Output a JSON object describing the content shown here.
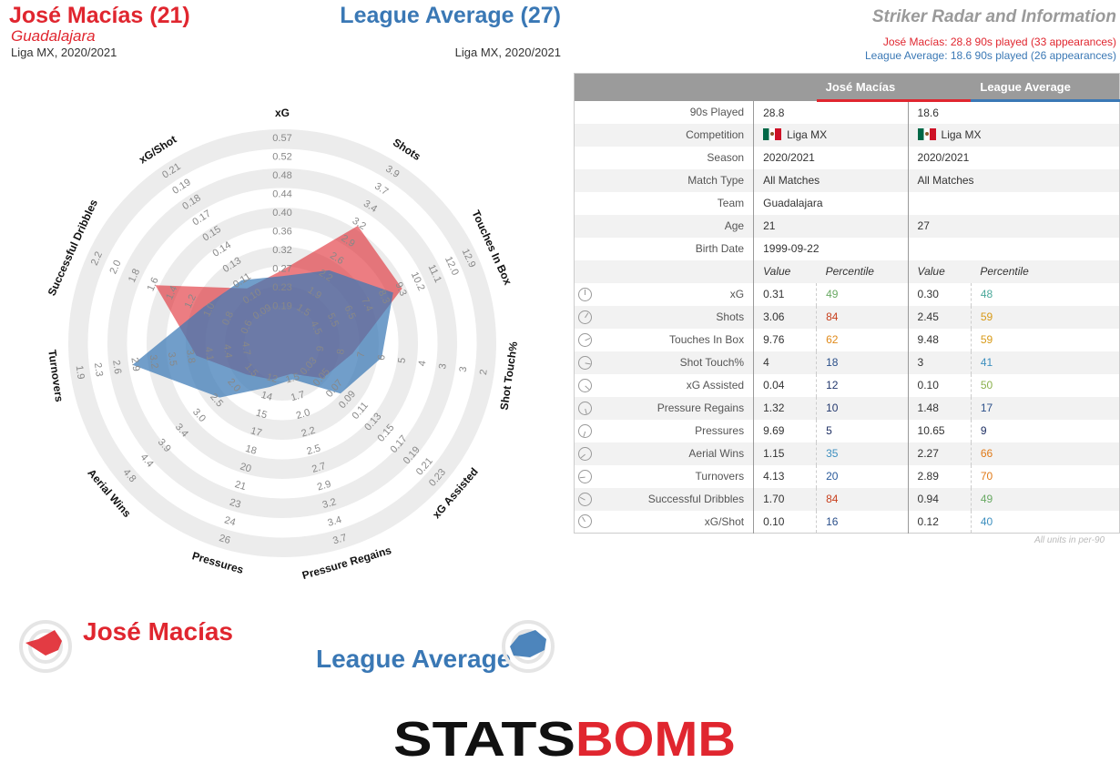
{
  "header": {
    "player1_name": "José Macías (21)",
    "player1_team": "Guadalajara",
    "player1_comp": "Liga MX, 2020/2021",
    "player2_name": "League Average (27)",
    "player2_comp": "Liga MX, 2020/2021",
    "radar_title": "Striker Radar and Information",
    "player1_played": "José Macías: 28.8 90s played (33 appearances)",
    "player2_played": "League Average: 18.6 90s played (26 appearances)"
  },
  "colors": {
    "player1": "#e0262f",
    "player2": "#3a78b5"
  },
  "chart_data": {
    "type": "radar",
    "axes": [
      {
        "label": "xG",
        "ticks": [
          "0.19",
          "0.23",
          "0.27",
          "0.32",
          "0.36",
          "0.40",
          "0.44",
          "0.48",
          "0.52",
          "0.57"
        ]
      },
      {
        "label": "Shots",
        "ticks": [
          "1.5",
          "1.9",
          "2.2",
          "2.6",
          "2.9",
          "3.2",
          "3.4",
          "3.7",
          "3.9"
        ]
      },
      {
        "label": "Touches In Box",
        "ticks": [
          "4.5",
          "5.5",
          "6.5",
          "7.4",
          "8.3",
          "9.3",
          "10.2",
          "11.1",
          "12.0",
          "12.9"
        ]
      },
      {
        "label": "Shot Touch%",
        "ticks": [
          "9",
          "8",
          "7",
          "6",
          "5",
          "4",
          "3",
          "3",
          "2"
        ]
      },
      {
        "label": "xG Assisted",
        "ticks": [
          "0.03",
          "0.05",
          "0.07",
          "0.09",
          "0.11",
          "0.13",
          "0.15",
          "0.17",
          "0.19",
          "0.21",
          "0.23"
        ]
      },
      {
        "label": "Pressure Regains",
        "ticks": [
          "1.5",
          "1.7",
          "2.0",
          "2.2",
          "2.5",
          "2.7",
          "2.9",
          "3.2",
          "3.4",
          "3.7"
        ]
      },
      {
        "label": "Pressures",
        "ticks": [
          "12",
          "14",
          "15",
          "17",
          "18",
          "20",
          "21",
          "23",
          "24",
          "26"
        ]
      },
      {
        "label": "Aerial Wins",
        "ticks": [
          "1.5",
          "2.0",
          "2.5",
          "3.0",
          "3.4",
          "3.9",
          "4.4",
          "4.8"
        ]
      },
      {
        "label": "Turnovers",
        "ticks": [
          "4.7",
          "4.4",
          "4.1",
          "3.8",
          "3.5",
          "3.2",
          "2.9",
          "2.6",
          "2.3",
          "1.9"
        ]
      },
      {
        "label": "Successful Dribbles",
        "ticks": [
          "0.6",
          "0.8",
          "1.0",
          "1.2",
          "1.4",
          "1.6",
          "1.8",
          "2.0",
          "2.2"
        ]
      },
      {
        "label": "xG/Shot",
        "ticks": [
          "0.09",
          "0.10",
          "0.11",
          "0.13",
          "0.14",
          "0.15",
          "0.17",
          "0.18",
          "0.19",
          "0.21"
        ]
      }
    ],
    "series": [
      {
        "name": "José Macías",
        "color": "#e0262f",
        "radius_fraction": [
          0.28,
          0.62,
          0.58,
          0.27,
          0.18,
          0.07,
          0.1,
          0.15,
          0.35,
          0.62,
          0.24
        ]
      },
      {
        "name": "League Average",
        "color": "#3a78b5",
        "radius_fraction": [
          0.25,
          0.35,
          0.53,
          0.42,
          0.3,
          0.1,
          0.14,
          0.33,
          0.68,
          0.35,
          0.29
        ]
      }
    ]
  },
  "table": {
    "col_player1": "José Macías",
    "col_player2": "League Average",
    "info_rows": [
      {
        "label": "90s Played",
        "p1": "28.8",
        "p2": "18.6"
      },
      {
        "label": "Competition",
        "p1": "Liga MX",
        "p2": "Liga MX",
        "flag": true
      },
      {
        "label": "Season",
        "p1": "2020/2021",
        "p2": "2020/2021"
      },
      {
        "label": "Match Type",
        "p1": "All Matches",
        "p2": "All Matches"
      },
      {
        "label": "Team",
        "p1": "Guadalajara",
        "p2": ""
      },
      {
        "label": "Age",
        "p1": "21",
        "p2": "27"
      },
      {
        "label": "Birth Date",
        "p1": "1999-09-22",
        "p2": ""
      }
    ],
    "sub_value": "Value",
    "sub_percentile": "Percentile",
    "stat_rows": [
      {
        "label": "xG",
        "v1": "0.31",
        "p1": "49",
        "c1": "#6aaa64",
        "v2": "0.30",
        "p2": "48",
        "c2": "#4aa89a"
      },
      {
        "label": "Shots",
        "v1": "3.06",
        "p1": "84",
        "c1": "#c8401e",
        "v2": "2.45",
        "p2": "59",
        "c2": "#d89a18"
      },
      {
        "label": "Touches In Box",
        "v1": "9.76",
        "p1": "62",
        "c1": "#e08a1a",
        "v2": "9.48",
        "p2": "59",
        "c2": "#d89a18"
      },
      {
        "label": "Shot Touch%",
        "v1": "4",
        "p1": "18",
        "c1": "#2a4f8a",
        "v2": "3",
        "p2": "41",
        "c2": "#3d8fbf"
      },
      {
        "label": "xG Assisted",
        "v1": "0.04",
        "p1": "12",
        "c1": "#23386e",
        "v2": "0.10",
        "p2": "50",
        "c2": "#8ab04a"
      },
      {
        "label": "Pressure Regains",
        "v1": "1.32",
        "p1": "10",
        "c1": "#23386e",
        "v2": "1.48",
        "p2": "17",
        "c2": "#2a4f8a"
      },
      {
        "label": "Pressures",
        "v1": "9.69",
        "p1": "5",
        "c1": "#1e2f63",
        "v2": "10.65",
        "p2": "9",
        "c2": "#1e2f63"
      },
      {
        "label": "Aerial Wins",
        "v1": "1.15",
        "p1": "35",
        "c1": "#3d8fbf",
        "v2": "2.27",
        "p2": "66",
        "c2": "#e07a18"
      },
      {
        "label": "Turnovers",
        "v1": "4.13",
        "p1": "20",
        "c1": "#2a5a9a",
        "v2": "2.89",
        "p2": "70",
        "c2": "#e07a18"
      },
      {
        "label": "Successful Dribbles",
        "v1": "1.70",
        "p1": "84",
        "c1": "#c8401e",
        "v2": "0.94",
        "p2": "49",
        "c2": "#6aaa64"
      },
      {
        "label": "xG/Shot",
        "v1": "0.10",
        "p1": "16",
        "c1": "#2a4f8a",
        "v2": "0.12",
        "p2": "40",
        "c2": "#3d8fbf"
      }
    ],
    "units_note": "All units in per-90"
  },
  "legend": {
    "player1": "José Macías",
    "player2": "League Average"
  },
  "logo": {
    "text": "STATSBOMB"
  }
}
